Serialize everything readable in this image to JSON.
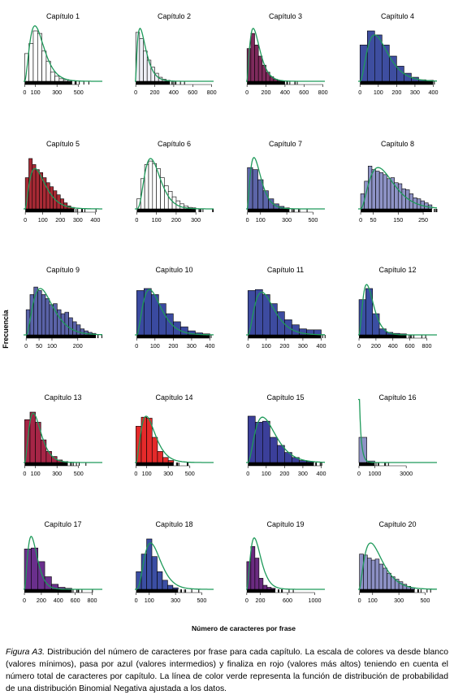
{
  "figure": {
    "ylabel": "Frecuencia",
    "xlabel": "Número  de caracteres por frase",
    "caption_label": "Figura A3.",
    "caption_text": " Distribución del número de caracteres por frase para cada capítulo. La escala de colores va desde blanco (valores mínimos), pasa por azul (valores intermedios) y finaliza en rojo (valores más altos) teniendo en cuenta el número total de caracteres por capítulo. La línea de color verde representa la función de distribución de probabilidad de una distribución Binomial Negativa ajustada a los datos."
  },
  "colors": {
    "fit_line": "#1e9a5a",
    "axis": "#000000",
    "bar_edge": "#000000"
  },
  "chart_data": [
    {
      "type": "bar",
      "title": "Capítulo 1",
      "fill": "#ffffff",
      "xlim": [
        -10,
        720
      ],
      "xticks": [
        0,
        100,
        300,
        500
      ],
      "bins": [
        0,
        40,
        80,
        120,
        160,
        200,
        240,
        280,
        320,
        360,
        400,
        440
      ],
      "counts": [
        0.55,
        0.75,
        1.0,
        0.95,
        0.6,
        0.4,
        0.18,
        0.1,
        0.05,
        0.03,
        0.02
      ],
      "fit": {
        "peak": 95,
        "scale": 1.1,
        "shape": 3
      }
    },
    {
      "type": "bar",
      "title": "Capítulo 2",
      "fill": "#edeef5",
      "xlim": [
        -10,
        820
      ],
      "xticks": [
        0,
        200,
        400,
        600,
        800
      ],
      "bins": [
        0,
        40,
        80,
        120,
        160,
        200,
        240,
        280,
        320,
        360
      ],
      "counts": [
        0.97,
        0.85,
        0.6,
        0.42,
        0.28,
        0.16,
        0.08,
        0.04,
        0.02
      ],
      "fit": {
        "peak": 45,
        "scale": 1.05,
        "shape": 2
      }
    },
    {
      "type": "bar",
      "title": "Capítulo 3",
      "fill": "#7e2a5c",
      "xlim": [
        -10,
        820
      ],
      "xticks": [
        0,
        200,
        400,
        600,
        800
      ],
      "bins": [
        0,
        40,
        80,
        120,
        160,
        200,
        240,
        280,
        320,
        360,
        400
      ],
      "counts": [
        0.65,
        0.95,
        0.72,
        0.5,
        0.32,
        0.18,
        0.09,
        0.04,
        0.02,
        0.01
      ],
      "fit": {
        "peak": 65,
        "scale": 1.05,
        "shape": 2.5
      }
    },
    {
      "type": "bar",
      "title": "Capítulo 4",
      "fill": "#3e4ea0",
      "xlim": [
        -10,
        420
      ],
      "xticks": [
        0,
        100,
        200,
        300,
        400
      ],
      "bins": [
        0,
        40,
        80,
        120,
        160,
        200,
        240,
        280,
        320,
        360,
        400
      ],
      "counts": [
        0.72,
        1.0,
        0.92,
        0.72,
        0.5,
        0.3,
        0.16,
        0.08,
        0.03,
        0.02
      ],
      "fit": {
        "peak": 80,
        "scale": 0.92,
        "shape": 3
      }
    },
    {
      "type": "bar",
      "title": "Capítulo 5",
      "fill": "#a82a35",
      "xlim": [
        -10,
        440
      ],
      "xticks": [
        0,
        100,
        200,
        300,
        400
      ],
      "bins": [
        0,
        20,
        40,
        60,
        80,
        100,
        120,
        140,
        160,
        180,
        200,
        220,
        240,
        260,
        280
      ],
      "counts": [
        0.62,
        1.0,
        0.88,
        0.78,
        0.72,
        0.62,
        0.52,
        0.44,
        0.36,
        0.28,
        0.2,
        0.12,
        0.06,
        0.03
      ],
      "fit": {
        "peak": 55,
        "scale": 0.8,
        "shape": 2.5
      }
    },
    {
      "type": "bar",
      "title": "Capítulo 6",
      "fill": "#ffffff",
      "xlim": [
        -10,
        390
      ],
      "xticks": [
        0,
        100,
        200,
        300
      ],
      "bins": [
        0,
        20,
        40,
        60,
        80,
        100,
        120,
        140,
        160,
        180,
        200,
        220,
        240,
        260,
        280,
        300
      ],
      "counts": [
        0.2,
        0.6,
        0.88,
        0.95,
        0.9,
        0.8,
        0.62,
        0.46,
        0.35,
        0.24,
        0.16,
        0.1,
        0.06,
        0.03,
        0.02
      ],
      "fit": {
        "peak": 70,
        "scale": 1.0,
        "shape": 4
      }
    },
    {
      "type": "bar",
      "title": "Capítulo 7",
      "fill": "#5c65a8",
      "xlim": [
        -10,
        590
      ],
      "xticks": [
        0,
        100,
        300,
        500
      ],
      "bins": [
        0,
        40,
        80,
        120,
        160,
        200,
        240,
        280,
        320
      ],
      "counts": [
        0.82,
        0.78,
        0.58,
        0.36,
        0.2,
        0.1,
        0.05,
        0.02
      ],
      "fit": {
        "peak": 50,
        "scale": 1.02,
        "shape": 2.5
      }
    },
    {
      "type": "bar",
      "title": "Capítulo 8",
      "fill": "#8e93c6",
      "xlim": [
        -10,
        305
      ],
      "xticks": [
        0,
        50,
        150,
        250
      ],
      "bins": [
        0,
        15,
        30,
        45,
        60,
        75,
        90,
        105,
        120,
        135,
        150,
        165,
        180,
        195,
        210,
        225,
        240,
        255,
        270,
        285
      ],
      "counts": [
        0.3,
        0.55,
        0.85,
        0.78,
        0.75,
        0.72,
        0.68,
        0.6,
        0.62,
        0.52,
        0.5,
        0.4,
        0.38,
        0.3,
        0.22,
        0.2,
        0.16,
        0.12,
        0.08
      ],
      "fit": {
        "peak": 70,
        "scale": 0.82,
        "shape": 3
      }
    },
    {
      "type": "bar",
      "title": "Capítulo 9",
      "fill": "#5a63a8",
      "xlim": [
        -10,
        295
      ],
      "xticks": [
        0,
        50,
        100,
        200
      ],
      "bins": [
        0,
        15,
        30,
        45,
        60,
        75,
        90,
        105,
        120,
        135,
        150,
        165,
        180,
        195,
        210,
        225,
        240,
        255,
        270
      ],
      "counts": [
        0.5,
        0.8,
        0.95,
        0.88,
        0.8,
        0.72,
        0.6,
        0.62,
        0.5,
        0.42,
        0.45,
        0.34,
        0.26,
        0.2,
        0.12,
        0.08,
        0.05,
        0.03
      ],
      "fit": {
        "peak": 55,
        "scale": 0.92,
        "shape": 3
      }
    },
    {
      "type": "bar",
      "title": "Capítulo 10",
      "fill": "#3a4aa0",
      "xlim": [
        -10,
        420
      ],
      "xticks": [
        0,
        100,
        200,
        300,
        400
      ],
      "bins": [
        0,
        40,
        80,
        120,
        160,
        200,
        240,
        280,
        320,
        360,
        400
      ],
      "counts": [
        0.88,
        0.92,
        0.8,
        0.62,
        0.42,
        0.26,
        0.16,
        0.08,
        0.04,
        0.02
      ],
      "fit": {
        "peak": 70,
        "scale": 0.9,
        "shape": 3
      }
    },
    {
      "type": "bar",
      "title": "Capítulo 11",
      "fill": "#3d4ba0",
      "xlim": [
        -10,
        420
      ],
      "xticks": [
        0,
        100,
        200,
        300,
        400
      ],
      "bins": [
        0,
        40,
        80,
        120,
        160,
        200,
        240,
        280,
        320,
        360,
        400
      ],
      "counts": [
        0.88,
        0.9,
        0.8,
        0.62,
        0.46,
        0.3,
        0.2,
        0.12,
        0.1,
        0.1
      ],
      "fit": {
        "peak": 75,
        "scale": 0.85,
        "shape": 3
      }
    },
    {
      "type": "bar",
      "title": "Capítulo 12",
      "fill": "#3b4ea3",
      "xlim": [
        -10,
        920
      ],
      "xticks": [
        0,
        200,
        400,
        600,
        800
      ],
      "bins": [
        0,
        80,
        160,
        240,
        320,
        400,
        480,
        560
      ],
      "counts": [
        0.7,
        0.92,
        0.42,
        0.12,
        0.05,
        0.03,
        0.02
      ],
      "fit": {
        "peak": 90,
        "scale": 1.0,
        "shape": 3
      }
    },
    {
      "type": "bar",
      "title": "Capítulo 13",
      "fill": "#a62546",
      "xlim": [
        -10,
        720
      ],
      "xticks": [
        0,
        100,
        300,
        500
      ],
      "bins": [
        0,
        50,
        100,
        150,
        200,
        250,
        300,
        350,
        400
      ],
      "counts": [
        0.85,
        1.0,
        0.8,
        0.45,
        0.22,
        0.12,
        0.05,
        0.02
      ],
      "fit": {
        "peak": 80,
        "scale": 0.98,
        "shape": 3
      }
    },
    {
      "type": "bar",
      "title": "Capítulo 14",
      "fill": "#e52a2a",
      "xlim": [
        -10,
        720
      ],
      "xticks": [
        0,
        100,
        300,
        500
      ],
      "bins": [
        0,
        50,
        100,
        150,
        200,
        250,
        300,
        350
      ],
      "counts": [
        0.72,
        0.9,
        0.88,
        0.5,
        0.22,
        0.1,
        0.04
      ],
      "fit": {
        "peak": 95,
        "scale": 0.92,
        "shape": 3
      }
    },
    {
      "type": "bar",
      "title": "Capítulo 15",
      "fill": "#3b3f9a",
      "xlim": [
        -10,
        420
      ],
      "xticks": [
        0,
        100,
        200,
        300,
        400
      ],
      "bins": [
        0,
        40,
        80,
        120,
        160,
        200,
        240,
        280,
        320,
        360
      ],
      "counts": [
        0.92,
        0.8,
        0.82,
        0.5,
        0.34,
        0.2,
        0.1,
        0.04,
        0.02
      ],
      "fit": {
        "peak": 80,
        "scale": 0.9,
        "shape": 3
      }
    },
    {
      "type": "bar",
      "title": "Capítulo 16",
      "fill": "#8e93c6",
      "xlim": [
        -50,
        4950
      ],
      "xticks": [
        0,
        1000,
        3000
      ],
      "bins": [
        0,
        500,
        1000
      ],
      "counts": [
        0.5,
        0.03
      ],
      "fit": {
        "peak": 60,
        "scale": 1.0,
        "shape": 0.8
      }
    },
    {
      "type": "bar",
      "title": "Capítulo 17",
      "fill": "#6a2f8c",
      "xlim": [
        -10,
        920
      ],
      "xticks": [
        0,
        200,
        400,
        600,
        800
      ],
      "bins": [
        0,
        80,
        160,
        240,
        320,
        400,
        480,
        560
      ],
      "counts": [
        0.8,
        0.82,
        0.55,
        0.25,
        0.1,
        0.04,
        0.02
      ],
      "fit": {
        "peak": 80,
        "scale": 1.05,
        "shape": 3
      }
    },
    {
      "type": "bar",
      "title": "Capítulo 18",
      "fill": "#3b4ea3",
      "xlim": [
        -10,
        590
      ],
      "xticks": [
        0,
        100,
        300,
        500
      ],
      "bins": [
        0,
        40,
        80,
        120,
        160,
        200,
        240,
        280,
        320
      ],
      "counts": [
        0.35,
        0.7,
        1.0,
        0.65,
        0.35,
        0.18,
        0.08,
        0.03
      ],
      "fit": {
        "peak": 110,
        "scale": 0.92,
        "shape": 4
      }
    },
    {
      "type": "bar",
      "title": "Capítulo 19",
      "fill": "#6a2a80",
      "xlim": [
        -10,
        1150
      ],
      "xticks": [
        0,
        200,
        600,
        1000
      ],
      "bins": [
        0,
        60,
        120,
        180,
        240,
        300,
        360,
        420
      ],
      "counts": [
        0.55,
        0.85,
        0.62,
        0.22,
        0.08,
        0.04,
        0.02
      ],
      "fit": {
        "peak": 110,
        "scale": 1.02,
        "shape": 3
      }
    },
    {
      "type": "bar",
      "title": "Capítulo 20",
      "fill": "#8c90c4",
      "xlim": [
        -10,
        590
      ],
      "xticks": [
        0,
        100,
        300,
        500
      ],
      "bins": [
        0,
        30,
        60,
        90,
        120,
        150,
        180,
        210,
        240,
        270,
        300,
        330,
        360,
        390,
        420
      ],
      "counts": [
        0.7,
        0.68,
        0.62,
        0.58,
        0.6,
        0.5,
        0.42,
        0.32,
        0.25,
        0.2,
        0.15,
        0.1,
        0.06,
        0.03
      ],
      "fit": {
        "peak": 85,
        "scale": 0.92,
        "shape": 2.5
      }
    }
  ]
}
